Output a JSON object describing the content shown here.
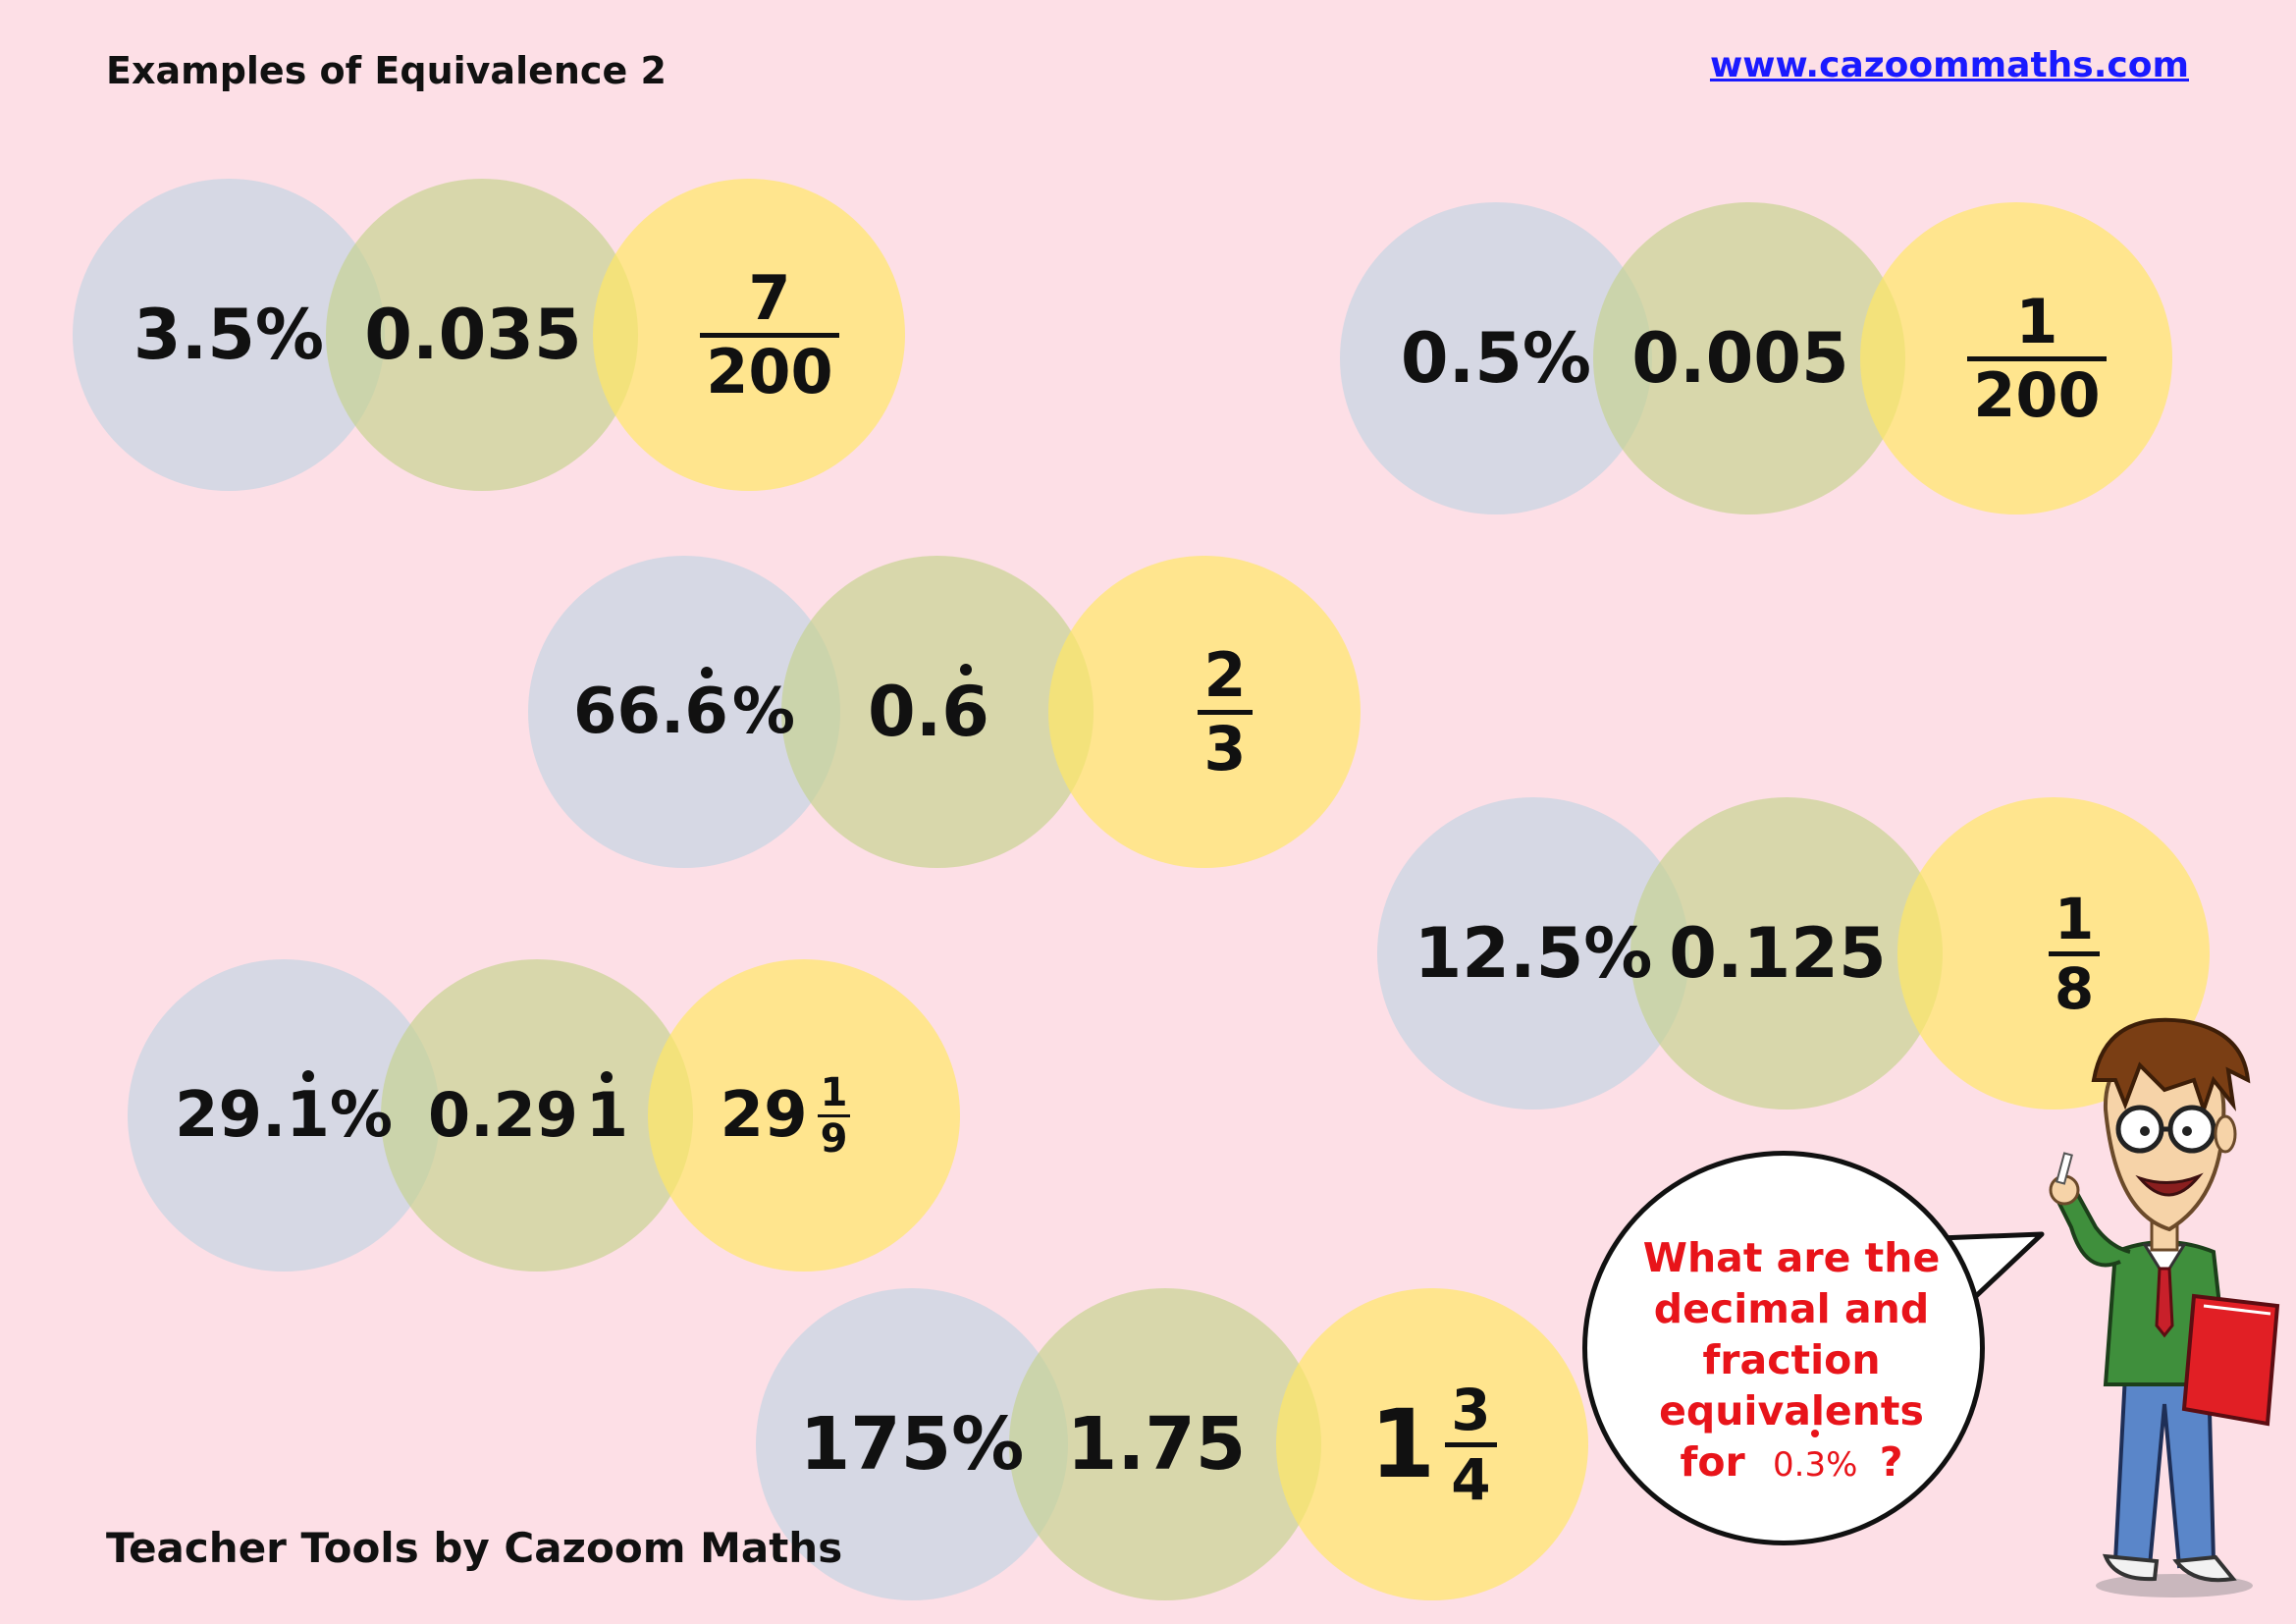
{
  "header": {
    "title": "Examples of Equivalence 2",
    "link": "www.cazoommaths.com"
  },
  "footer": {
    "text": "Teacher Tools by Cazoom Maths"
  },
  "groups": [
    {
      "percent": "3.5%",
      "decimal": "0.035",
      "fraction": {
        "numerator": "7",
        "denominator": "200"
      }
    },
    {
      "percent": "0.5%",
      "decimal": "0.005",
      "fraction": {
        "numerator": "1",
        "denominator": "200"
      }
    },
    {
      "percent": {
        "before": "66.",
        "recurring": "6",
        "after": "%"
      },
      "decimal": {
        "before": "0.",
        "recurring": "6"
      },
      "fraction": {
        "numerator": "2",
        "denominator": "3"
      }
    },
    {
      "percent": "12.5%",
      "decimal": "0.125",
      "fraction": {
        "numerator": "1",
        "denominator": "8"
      }
    },
    {
      "percent": {
        "before": "29.",
        "recurring": "1",
        "after": "%"
      },
      "decimal": {
        "before": "0.29",
        "recurring": "1"
      },
      "fraction": {
        "whole": "29",
        "numerator": "1",
        "denominator": "9"
      }
    },
    {
      "percent": "175%",
      "decimal": "1.75",
      "fraction": {
        "whole": "1",
        "numerator": "3",
        "denominator": "4"
      }
    }
  ],
  "speech_bubble": {
    "lines": [
      "What are the",
      "decimal and",
      "fraction",
      "equivalents"
    ],
    "last_prefix": "for",
    "number": {
      "before": "0.",
      "recurring": "3",
      "after": "%"
    },
    "suffix": "?"
  },
  "colors": {
    "background": "#fddfe6",
    "percent_circle": "#d2d7e4",
    "decimal_circle": "#c4d28c",
    "fraction_circle": "#ffe864",
    "bubble_text": "#e8141a",
    "link": "#1a1aff"
  },
  "icons": {
    "character": "teacher-cartoon-icon"
  }
}
